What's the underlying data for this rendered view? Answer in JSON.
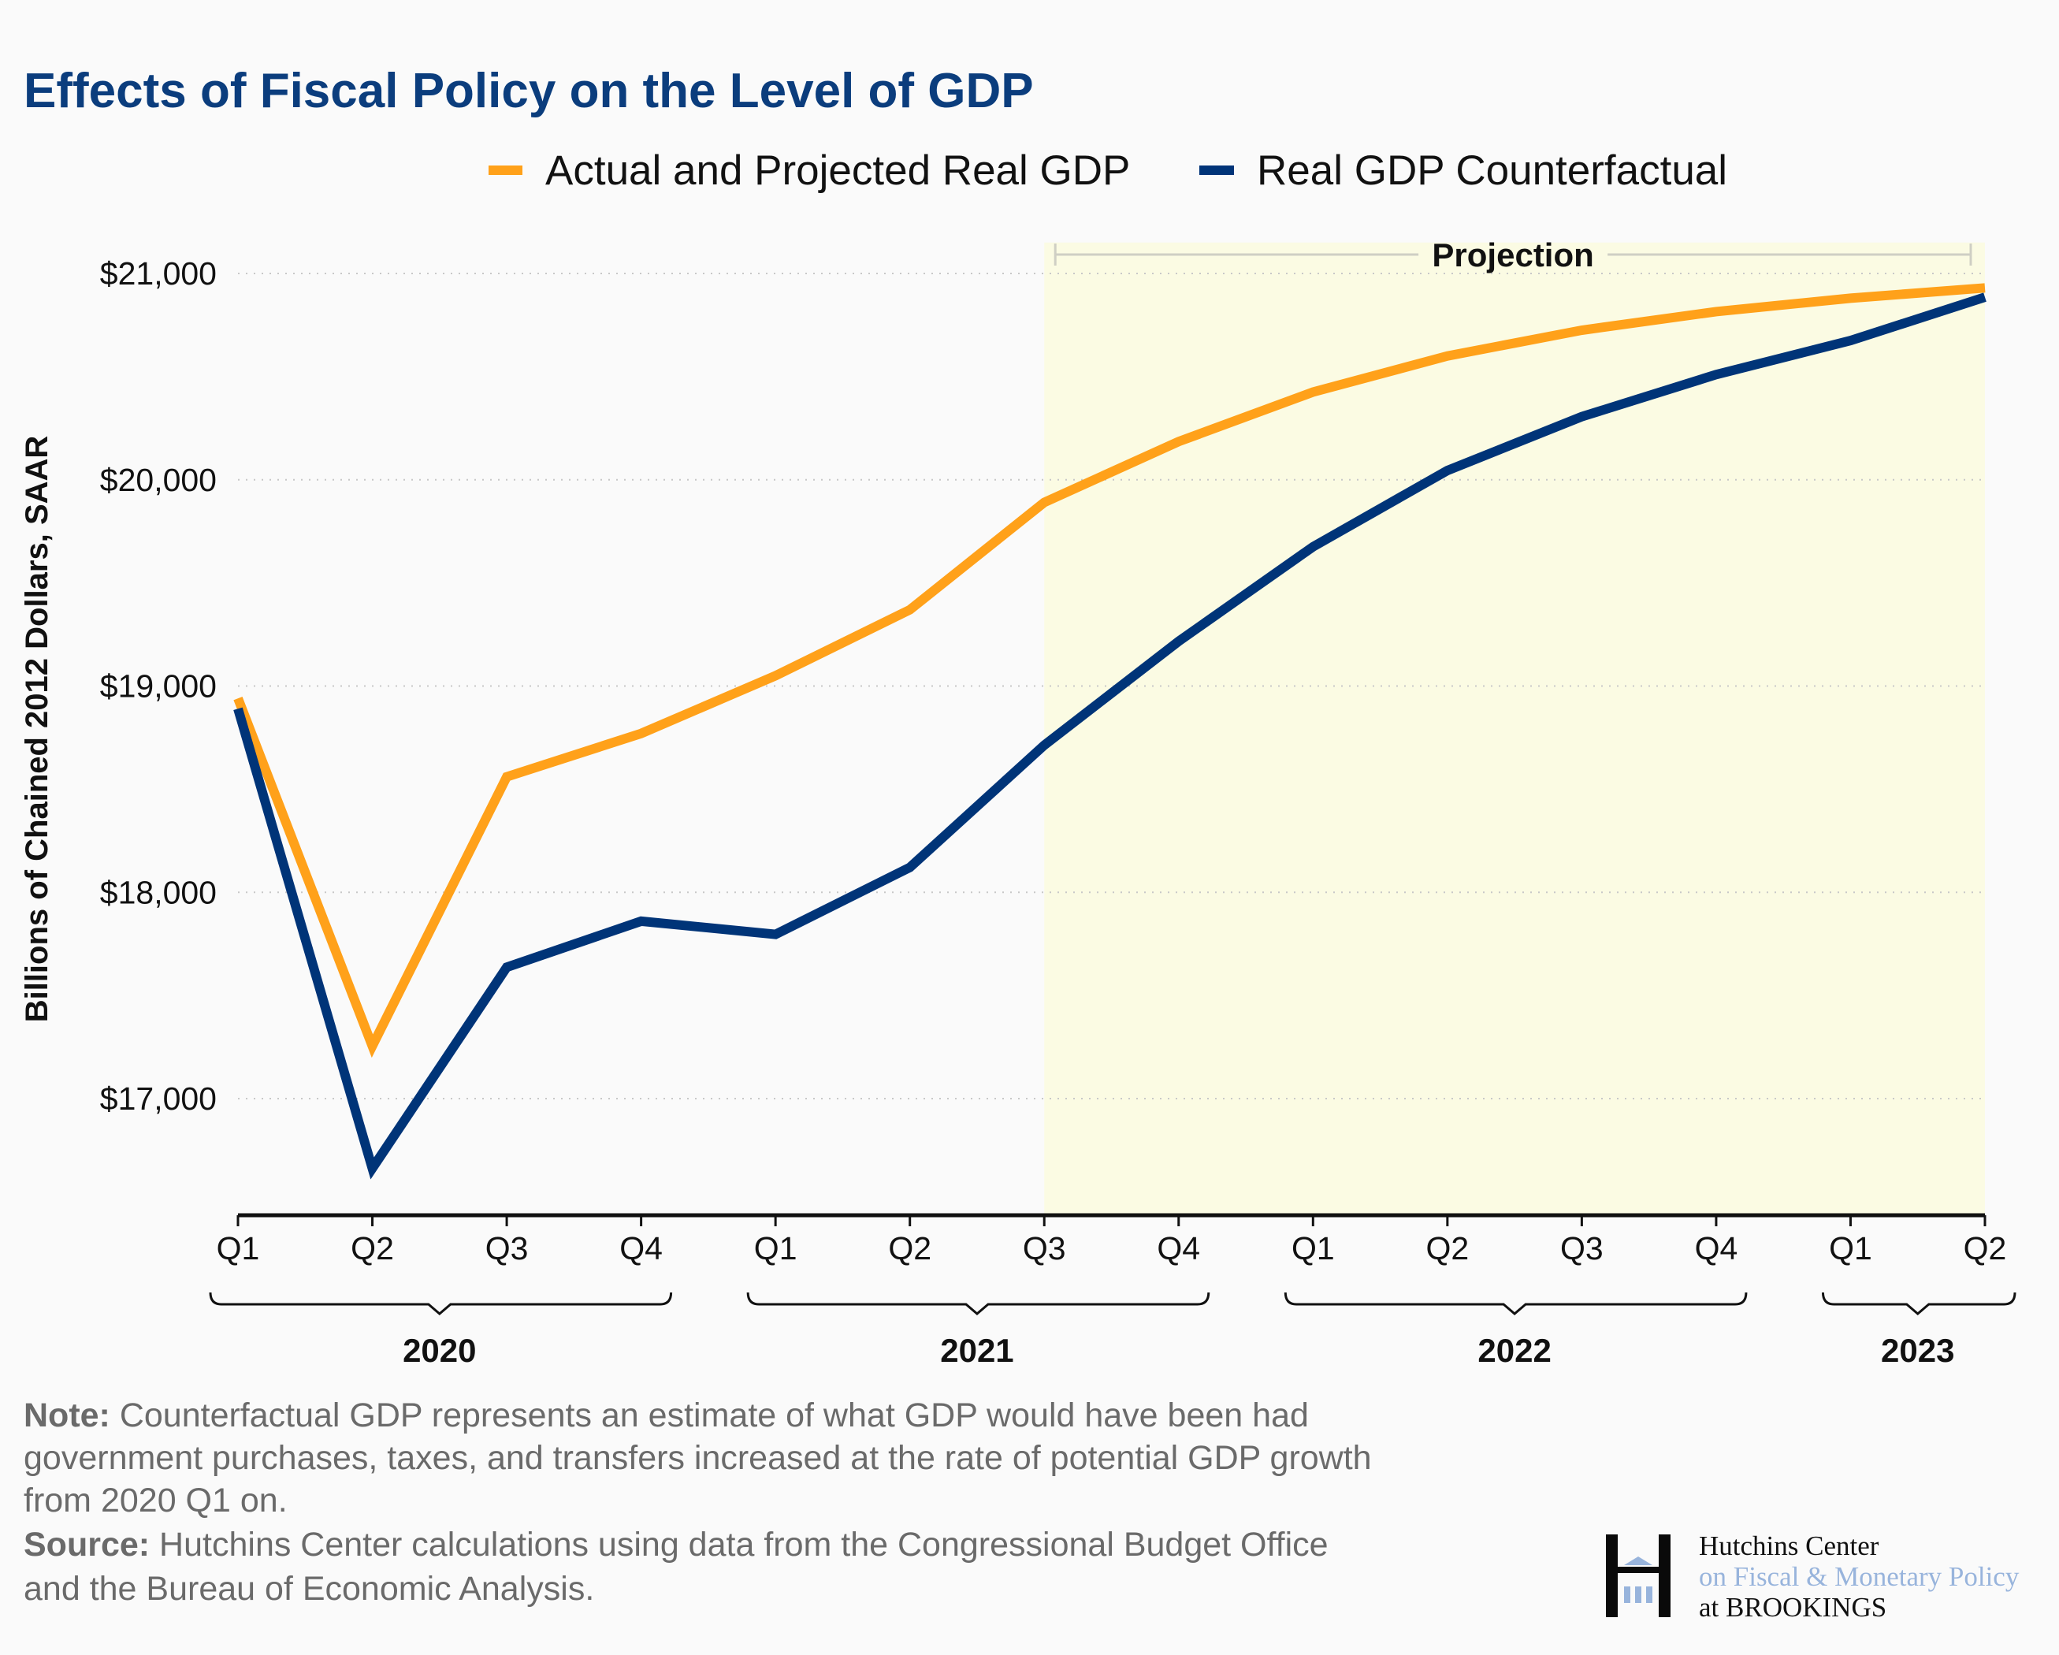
{
  "title": "Effects of Fiscal Policy on the Level of GDP",
  "colors": {
    "actual": "#ffa11a",
    "counterfactual": "#003478",
    "projection_shade": "#fbfbe3",
    "title": "#0b3d7d",
    "logo_blue": "#98b4dc"
  },
  "chart_data": {
    "type": "line",
    "title": "Effects of Fiscal Policy on the Level of GDP",
    "ylabel": "Billions of Chained 2012 Dollars, SAAR",
    "xlabel": "",
    "x": [
      "2020 Q1",
      "2020 Q2",
      "2020 Q3",
      "2020 Q4",
      "2021 Q1",
      "2021 Q2",
      "2021 Q3",
      "2021 Q4",
      "2022 Q1",
      "2022 Q2",
      "2022 Q3",
      "2022 Q4",
      "2023 Q1",
      "2023 Q2"
    ],
    "x_tick_labels": [
      "Q1",
      "Q2",
      "Q3",
      "Q4",
      "Q1",
      "Q2",
      "Q3",
      "Q4",
      "Q1",
      "Q2",
      "Q3",
      "Q4",
      "Q1",
      "Q2"
    ],
    "year_groups": [
      {
        "label": "2020",
        "start": 0,
        "end": 3
      },
      {
        "label": "2021",
        "start": 4,
        "end": 7
      },
      {
        "label": "2022",
        "start": 8,
        "end": 11
      },
      {
        "label": "2023",
        "start": 12,
        "end": 13
      }
    ],
    "y_ticks": [
      17000,
      18000,
      19000,
      20000,
      21000
    ],
    "y_tick_labels": [
      "$17,000",
      "$18,000",
      "$19,000",
      "$20,000",
      "$21,000"
    ],
    "ylim": [
      16450,
      21150
    ],
    "grid": "horizontal dotted",
    "legend_position": "top",
    "series": [
      {
        "name": "Actual and Projected Real GDP",
        "color": "#ffa11a",
        "values": [
          18940,
          17255,
          18560,
          18770,
          19050,
          19370,
          19890,
          20185,
          20425,
          20600,
          20725,
          20815,
          20880,
          20930
        ]
      },
      {
        "name": "Real GDP Counterfactual",
        "color": "#003478",
        "values": [
          18890,
          16662,
          17637,
          17860,
          17796,
          18121,
          18713,
          19217,
          19675,
          20045,
          20306,
          20510,
          20675,
          20885
        ]
      }
    ],
    "annotation": {
      "label": "Projection",
      "start": "2021 Q3",
      "end": "2023 Q2"
    }
  },
  "note": {
    "note_label": "Note:",
    "note_lines": [
      " Counterfactual GDP represents an estimate of what GDP would have been had",
      "government purchases, taxes, and transfers increased at the rate of potential GDP growth",
      "from 2020 Q1 on."
    ],
    "source_label": "Source:",
    "source_lines": [
      " Hutchins Center calculations using data from the Congressional Budget Office",
      "and the Bureau of Economic Analysis."
    ]
  },
  "logo": {
    "line1": "Hutchins Center",
    "line2": "on Fiscal & Monetary Policy",
    "line3": "at BROOKINGS"
  }
}
